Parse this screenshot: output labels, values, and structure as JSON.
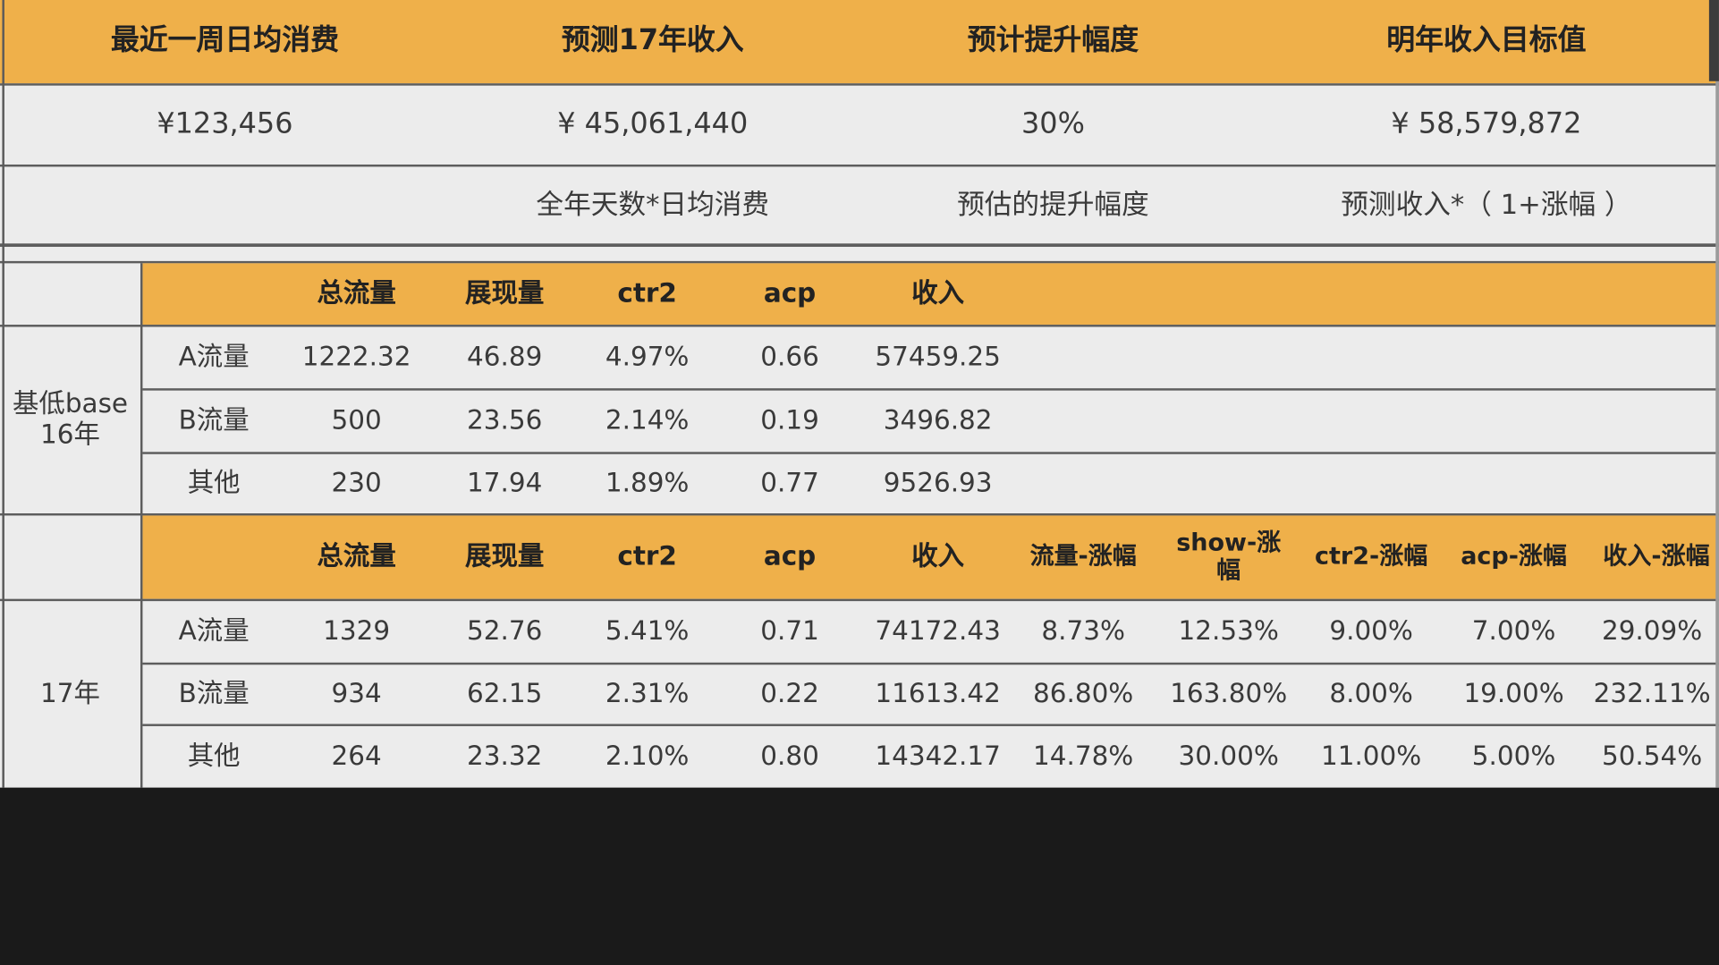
{
  "summary": {
    "headers": [
      "最近一周日均消费",
      "预测17年收入",
      "预计提升幅度",
      "明年收入目标值"
    ],
    "values": [
      "¥123,456",
      "¥ 45,061,440",
      "30%",
      "¥ 58,579,872"
    ],
    "notes": [
      "",
      "全年天数*日均消费",
      "预估的提升幅度",
      "预测收入*（ 1+涨幅 ）"
    ]
  },
  "base16": {
    "group_label": "基低base\n16年",
    "columns": [
      "总流量",
      "展现量",
      "ctr2",
      "acp",
      "收入"
    ],
    "rows": [
      {
        "name": "A流量",
        "cells": [
          "1222.32",
          "46.89",
          "4.97%",
          "0.66",
          "57459.25"
        ]
      },
      {
        "name": "B流量",
        "cells": [
          "500",
          "23.56",
          "2.14%",
          "0.19",
          "3496.82"
        ]
      },
      {
        "name": "其他",
        "cells": [
          "230",
          "17.94",
          "1.89%",
          "0.77",
          "9526.93"
        ]
      }
    ]
  },
  "y17": {
    "group_label": "17年",
    "columns": [
      "总流量",
      "展现量",
      "ctr2",
      "acp",
      "收入",
      "流量-涨幅",
      "show-涨\n幅",
      "ctr2-涨幅",
      "acp-涨幅",
      "收入-涨幅"
    ],
    "rows": [
      {
        "name": "A流量",
        "cells": [
          "1329",
          "52.76",
          "5.41%",
          "0.71",
          "74172.43",
          "8.73%",
          "12.53%",
          "9.00%",
          "7.00%",
          "29.09%"
        ]
      },
      {
        "name": "B流量",
        "cells": [
          "934",
          "62.15",
          "2.31%",
          "0.22",
          "11613.42",
          "86.80%",
          "163.80%",
          "8.00%",
          "19.00%",
          "232.11%"
        ]
      },
      {
        "name": "其他",
        "cells": [
          "264",
          "23.32",
          "2.10%",
          "0.80",
          "14342.17",
          "14.78%",
          "30.00%",
          "11.00%",
          "5.00%",
          "50.54%"
        ]
      }
    ]
  },
  "colors": {
    "header": "#efb04a",
    "background": "#ececec",
    "grid": "#5d5d5d"
  }
}
